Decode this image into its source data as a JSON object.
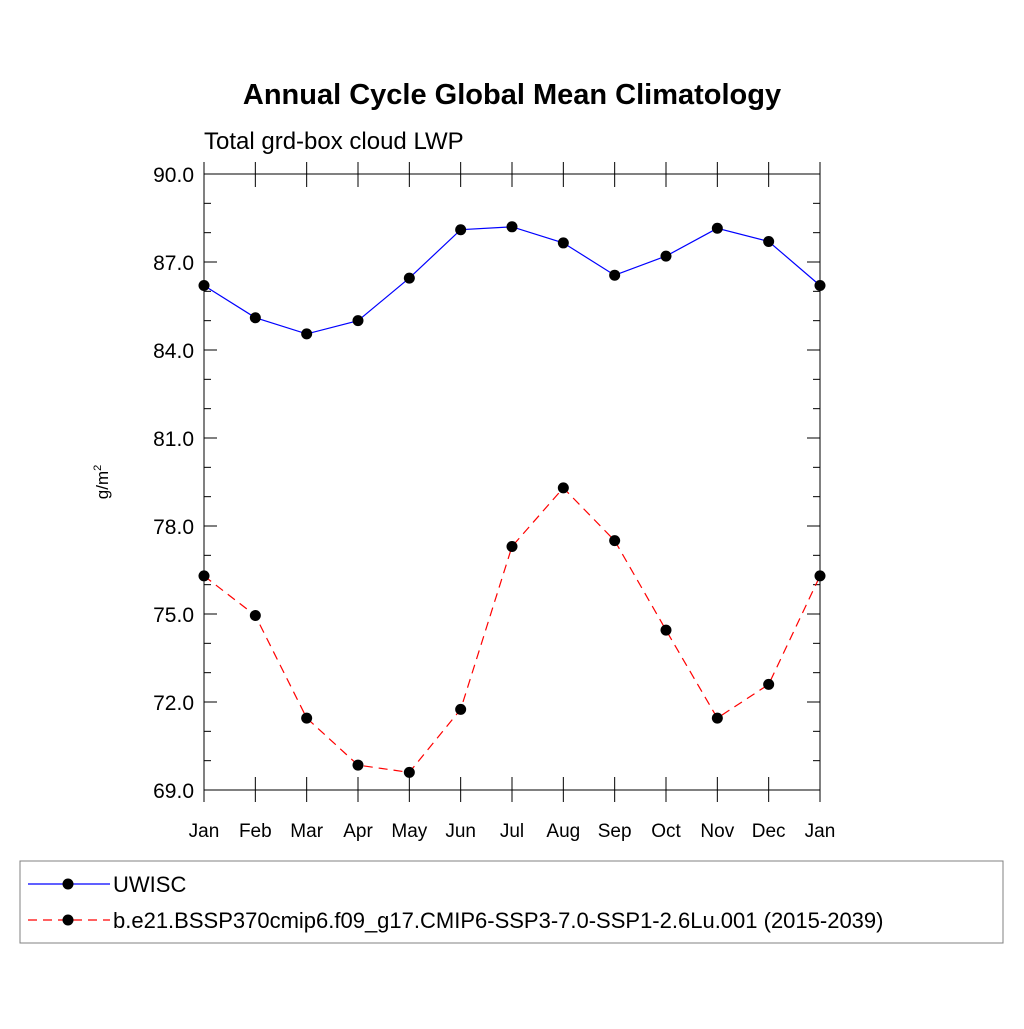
{
  "chart_data": {
    "type": "line",
    "title": "Annual Cycle Global Mean Climatology",
    "subtitle": "Total grd-box cloud LWP",
    "ylabel_base": "g/m",
    "ylabel_sup": "2",
    "categories": [
      "Jan",
      "Feb",
      "Mar",
      "Apr",
      "May",
      "Jun",
      "Jul",
      "Aug",
      "Sep",
      "Oct",
      "Nov",
      "Dec",
      "Jan"
    ],
    "ylim": [
      69.0,
      90.0
    ],
    "yticks": [
      "69.0",
      "72.0",
      "75.0",
      "78.0",
      "81.0",
      "84.0",
      "87.0",
      "90.0"
    ],
    "ytick_values": [
      69,
      72,
      75,
      78,
      81,
      84,
      87,
      90
    ],
    "grid": false,
    "legend_position": "bottom",
    "series": [
      {
        "name": "UWISC",
        "color": "#0000ff",
        "dashed": false,
        "values": [
          86.2,
          85.1,
          84.55,
          85.0,
          86.45,
          88.1,
          88.2,
          87.65,
          86.55,
          87.2,
          88.15,
          87.7,
          86.2
        ]
      },
      {
        "name": "b.e21.BSSP370cmip6.f09_g17.CMIP6-SSP3-7.0-SSP1-2.6Lu.001 (2015-2039)",
        "color": "#ff0000",
        "dashed": true,
        "values": [
          76.3,
          74.95,
          71.45,
          69.85,
          69.6,
          71.75,
          77.3,
          79.3,
          77.5,
          74.45,
          71.45,
          72.6,
          76.3
        ]
      }
    ]
  }
}
